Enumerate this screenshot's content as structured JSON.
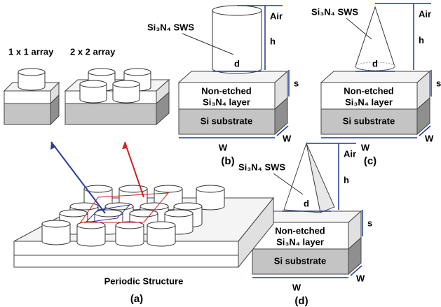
{
  "panel_a": {
    "label_1x1": "1 x 1 array",
    "label_2x2": "2 x 2 array",
    "structure": "Periodic Structure",
    "tag": "(a)"
  },
  "panel_b": {
    "sws": "Si₃N₄ SWS",
    "air": "Air",
    "h": "h",
    "d": "d",
    "s": "s",
    "layer_1": "Non-etched",
    "layer_2": "Si₃N₄ layer",
    "substrate": "Si substrate",
    "w_front": "W",
    "w_side": "W",
    "tag": "(b)"
  },
  "panel_c": {
    "sws": "Si₃N₄ SWS",
    "air": "Air",
    "h": "h",
    "d": "d",
    "s": "s",
    "layer_1": "Non-etched",
    "layer_2": "Si₃N₄ layer",
    "substrate": "Si substrate",
    "w_front": "W",
    "w_side": "W",
    "tag": "(c)"
  },
  "panel_d": {
    "sws": "Si₃N₄ SWS",
    "air": "Air",
    "h": "h",
    "d": "d",
    "s": "s",
    "layer_1": "Non-etched",
    "layer_2": "Si₃N₄ layer",
    "substrate": "Si substrate",
    "w_front": "W",
    "w_side": "W",
    "tag": "(d)"
  }
}
